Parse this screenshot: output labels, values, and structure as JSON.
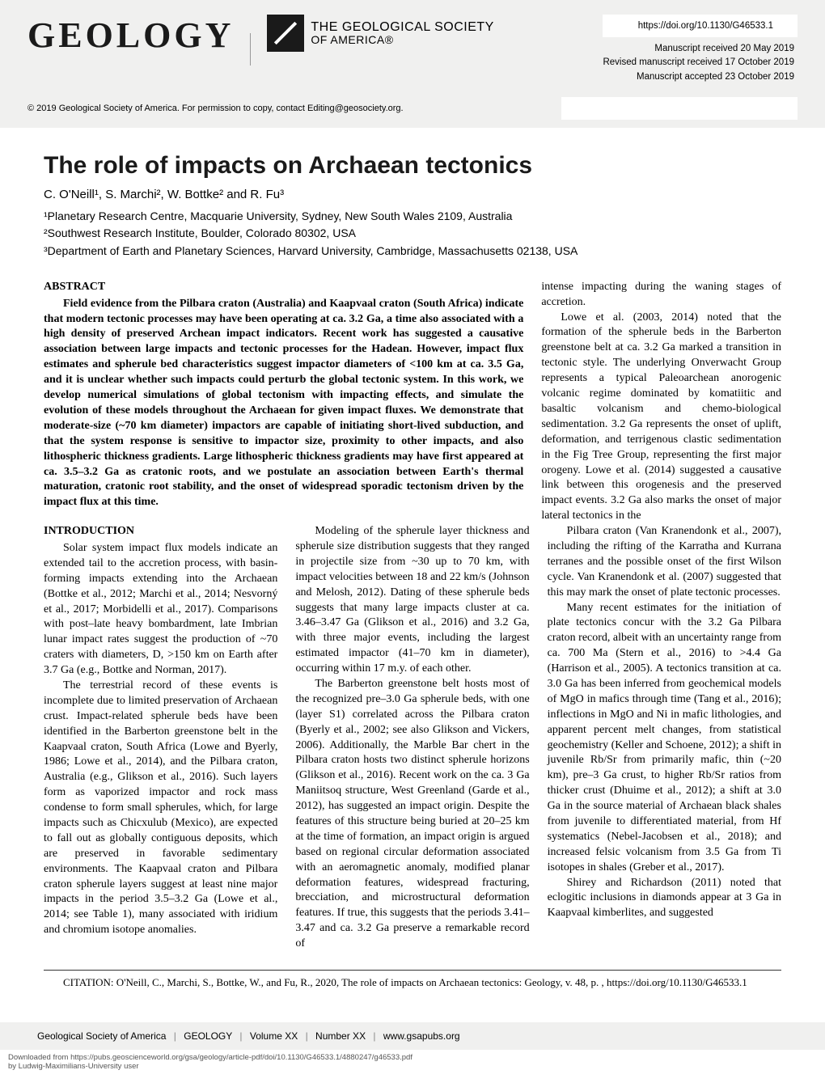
{
  "header": {
    "journal_logo": "GEOLOGY",
    "society_name": "THE GEOLOGICAL SOCIETY",
    "society_sub": "OF AMERICA®",
    "doi_url": "https://doi.org/10.1130/G46533.1",
    "manuscript_received": "Manuscript received 20 May 2019",
    "manuscript_revised": "Revised manuscript received 17 October 2019",
    "manuscript_accepted": "Manuscript accepted 23 October 2019",
    "copyright": "© 2019 Geological Society of America. For permission to copy, contact Editing@geosociety.org."
  },
  "article": {
    "title": "The role of impacts on Archaean tectonics",
    "authors_html": "C. O'Neill¹, S. Marchi², W. Bottke² and R. Fu³",
    "affiliation1": "¹Planetary Research Centre, Macquarie University, Sydney, New South Wales 2109, Australia",
    "affiliation2": "²Southwest Research Institute, Boulder, Colorado 80302, USA",
    "affiliation3": "³Department of Earth and Planetary Sciences, Harvard University, Cambridge, Massachusetts 02138, USA",
    "abstract_heading": "ABSTRACT",
    "abstract_text": "Field evidence from the Pilbara craton (Australia) and Kaapvaal craton (South Africa) indicate that modern tectonic processes may have been operating at ca. 3.2 Ga, a time also associated with a high density of preserved Archean impact indicators. Recent work has suggested a causative association between large impacts and tectonic processes for the Hadean. However, impact flux estimates and spherule bed characteristics suggest impactor diameters of <100 km at ca. 3.5 Ga, and it is unclear whether such impacts could perturb the global tectonic system. In this work, we develop numerical simulations of global tectonism with impacting effects, and simulate the evolution of these models throughout the Archaean for given impact fluxes. We demonstrate that moderate-size (~70 km diameter) impactors are capable of initiating short-lived subduction, and that the system response is sensitive to impactor size, proximity to other impacts, and also lithospheric thickness gradients. Large lithospheric thickness gradients may have first appeared at ca. 3.5–3.2 Ga as cratonic roots, and we postulate an association between Earth's thermal maturation, cratonic root stability, and the onset of widespread sporadic tectonism driven by the impact flux at this time.",
    "side_text1": "intense impacting during the waning stages of accretion.",
    "side_text2": "Lowe et al. (2003, 2014) noted that the formation of the spherule beds in the Barberton greenstone belt at ca. 3.2 Ga marked a transition in tectonic style. The underlying Onverwacht Group represents a typical Paleoarchean anorogenic volcanic regime dominated by komatiitic and basaltic volcanism and chemo-biological sedimentation. 3.2 Ga represents the onset of uplift, deformation, and terrigenous clastic sedimentation in the Fig Tree Group, representing the first major orogeny. Lowe et al. (2014) suggested a causative link between this orogenesis and the preserved impact events. 3.2 Ga also marks the onset of major lateral tectonics in the",
    "intro_heading": "INTRODUCTION",
    "intro_p1": "Solar system impact flux models indicate an extended tail to the accretion process, with basin-forming impacts extending into the Archaean (Bottke et al., 2012; Marchi et al., 2014; Nesvorný et al., 2017; Morbidelli et al., 2017). Comparisons with post–late heavy bombardment, late Imbrian lunar impact rates suggest the production of ~70 craters with diameters, D, >150 km on Earth after 3.7 Ga (e.g., Bottke and Norman, 2017).",
    "intro_p2": "The terrestrial record of these events is incomplete due to limited preservation of Archaean crust. Impact-related spherule beds have been identified in the Barberton greenstone belt in the Kaapvaal craton, South Africa (Lowe and Byerly, 1986; Lowe et al., 2014), and the Pilbara craton, Australia (e.g., Glikson et al., 2016). Such layers form as vaporized impactor and rock mass condense to form small spherules, which, for large impacts such as Chicxulub (Mexico), are expected to fall out as globally contiguous deposits, which are preserved in favorable sedimentary environments. The Kaapvaal craton and Pilbara craton spherule layers suggest at least nine major impacts in the period 3.5–3.2 Ga (Lowe et al., 2014; see Table 1), many associated with iridium and chromium isotope anomalies.",
    "col2_p1": "Modeling of the spherule layer thickness and spherule size distribution suggests that they ranged in projectile size from ~30 up to 70 km, with impact velocities between 18 and 22 km/s (Johnson and Melosh, 2012). Dating of these spherule beds suggests that many large impacts cluster at ca. 3.46–3.47 Ga (Glikson et al., 2016) and 3.2 Ga, with three major events, including the largest estimated impactor (41–70 km in diameter), occurring within 17 m.y. of each other.",
    "col2_p2": "The Barberton greenstone belt hosts most of the recognized pre–3.0 Ga spherule beds, with one (layer S1) correlated across the Pilbara craton (Byerly et al., 2002; see also Glikson and Vickers, 2006). Additionally, the Marble Bar chert in the Pilbara craton hosts two distinct spherule horizons (Glikson et al., 2016). Recent work on the ca. 3 Ga Maniitsoq structure, West Greenland (Garde et al., 2012), has suggested an impact origin. Despite the features of this structure being buried at 20–25 km at the time of formation, an impact origin is argued based on regional circular deformation associated with an aeromagnetic anomaly, modified planar deformation features, widespread fracturing, brecciation, and microstructural deformation features. If true, this suggests that the periods 3.41–3.47 and ca. 3.2 Ga preserve a remarkable record of",
    "col3_p1": "Pilbara craton (Van Kranendonk et al., 2007), including the rifting of the Karratha and Kurrana terranes and the possible onset of the first Wilson cycle. Van Kranendonk et al. (2007) suggested that this may mark the onset of plate tectonic processes.",
    "col3_p2": "Many recent estimates for the initiation of plate tectonics concur with the 3.2 Ga Pilbara craton record, albeit with an uncertainty range from ca. 700 Ma (Stern et al., 2016) to >4.4 Ga (Harrison et al., 2005). A tectonics transition at ca. 3.0 Ga has been inferred from geochemical models of MgO in mafics through time (Tang et al., 2016); inflections in MgO and Ni in mafic lithologies, and apparent percent melt changes, from statistical geochemistry (Keller and Schoene, 2012); a shift in juvenile Rb/Sr from primarily mafic, thin (~20 km), pre–3 Ga crust, to higher Rb/Sr ratios from thicker crust (Dhuime et al., 2012); a shift at 3.0 Ga in the source material of Archaean black shales from juvenile to differentiated material, from Hf systematics (Nebel-Jacobsen et al., 2018); and increased felsic volcanism from 3.5 Ga from Ti isotopes in shales (Greber et al., 2017).",
    "col3_p3": "Shirey and Richardson (2011) noted that eclogitic inclusions in diamonds appear at 3 Ga in Kaapvaal kimberlites, and suggested",
    "citation": "CITATION: O'Neill, C., Marchi, S., Bottke, W., and Fu, R., 2020, The role of impacts on Archaean tectonics: Geology, v. 48, p.        , https://doi.org/10.1130/G46533.1"
  },
  "footer": {
    "org": "Geological Society of America",
    "journal": "GEOLOGY",
    "volume": "Volume XX",
    "number": "Number XX",
    "url": "www.gsapubs.org",
    "download_line1": "Downloaded from https://pubs.geoscienceworld.org/gsa/geology/article-pdf/doi/10.1130/G46533.1/4880247/g46533.pdf",
    "download_line2": "by Ludwig-Maximilians-University user"
  },
  "colors": {
    "band_bg": "#f0f0ef",
    "text": "#1a1a1a"
  }
}
